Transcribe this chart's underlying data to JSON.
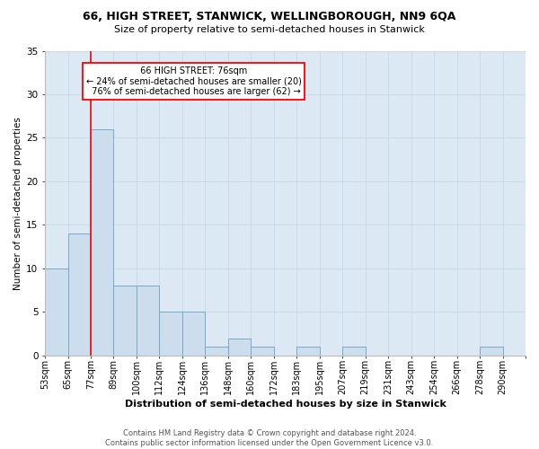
{
  "title": "66, HIGH STREET, STANWICK, WELLINGBOROUGH, NN9 6QA",
  "subtitle": "Size of property relative to semi-detached houses in Stanwick",
  "xlabel": "Distribution of semi-detached houses by size in Stanwick",
  "ylabel": "Number of semi-detached properties",
  "footer_line1": "Contains HM Land Registry data © Crown copyright and database right 2024.",
  "footer_line2": "Contains public sector information licensed under the Open Government Licence v3.0.",
  "bin_labels": [
    "53sqm",
    "65sqm",
    "77sqm",
    "89sqm",
    "100sqm",
    "112sqm",
    "124sqm",
    "136sqm",
    "148sqm",
    "160sqm",
    "172sqm",
    "183sqm",
    "195sqm",
    "207sqm",
    "219sqm",
    "231sqm",
    "243sqm",
    "254sqm",
    "266sqm",
    "278sqm",
    "290sqm"
  ],
  "bar_values": [
    10,
    14,
    26,
    8,
    8,
    5,
    5,
    1,
    2,
    1,
    0,
    1,
    0,
    1,
    0,
    0,
    0,
    0,
    0,
    1,
    0
  ],
  "bar_color": "#ccdded",
  "bar_edge_color": "#7aaac8",
  "subject_line_color": "red",
  "grid_color": "#c8d8e8",
  "bg_color": "#dce8f4",
  "ylim": [
    0,
    35
  ],
  "yticks": [
    0,
    5,
    10,
    15,
    20,
    25,
    30,
    35
  ],
  "n_bins": 21,
  "bin_width": 1,
  "subject_bin_idx": 2,
  "subject_label": "66 HIGH STREET: 76sqm",
  "pct_smaller": 24,
  "pct_larger": 76,
  "count_smaller": 20,
  "count_larger": 62,
  "title_fontsize": 9,
  "subtitle_fontsize": 8,
  "xlabel_fontsize": 8,
  "ylabel_fontsize": 7.5,
  "tick_fontsize": 7,
  "footer_fontsize": 6
}
